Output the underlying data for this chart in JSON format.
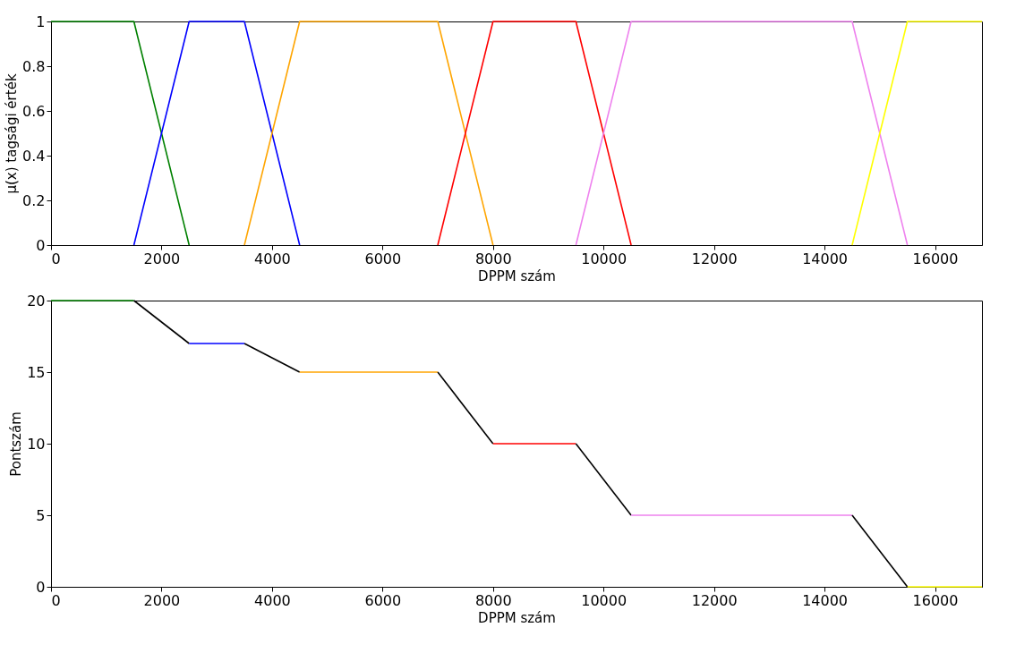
{
  "chart_data": [
    {
      "type": "line",
      "xlabel": "DPPM szám",
      "ylabel": "μ(x) tagsági érték",
      "xlim": [
        0,
        16850
      ],
      "ylim": [
        0,
        1
      ],
      "xticks": [
        0,
        2000,
        4000,
        6000,
        8000,
        10000,
        12000,
        14000,
        16000
      ],
      "yticks": [
        0,
        0.2,
        0.4,
        0.6,
        0.8,
        1
      ],
      "grid": false,
      "series": [
        {
          "color": "#008000",
          "x": [
            0,
            1500,
            2500
          ],
          "values": [
            1,
            1,
            0
          ]
        },
        {
          "color": "#0000ff",
          "x": [
            1500,
            2500,
            3500,
            4500
          ],
          "values": [
            0,
            1,
            1,
            0
          ]
        },
        {
          "color": "#ffa500",
          "x": [
            3500,
            4500,
            7000,
            8000
          ],
          "values": [
            0,
            1,
            1,
            0
          ]
        },
        {
          "color": "#ff0000",
          "x": [
            7000,
            8000,
            9500,
            10500
          ],
          "values": [
            0,
            1,
            1,
            0
          ]
        },
        {
          "color": "#ee82ee",
          "x": [
            9500,
            10500,
            14500,
            15500
          ],
          "values": [
            0,
            1,
            1,
            0
          ]
        },
        {
          "color": "#ffff00",
          "x": [
            14500,
            15500,
            16850
          ],
          "values": [
            0,
            1,
            1
          ]
        }
      ]
    },
    {
      "type": "line",
      "xlabel": "DPPM szám",
      "ylabel": "Pontszám",
      "xlim": [
        0,
        16850
      ],
      "ylim": [
        0,
        20
      ],
      "xticks": [
        0,
        2000,
        4000,
        6000,
        8000,
        10000,
        12000,
        14000,
        16000
      ],
      "yticks": [
        0,
        5,
        10,
        15,
        20
      ],
      "grid": false,
      "series": [
        {
          "color": "#008000",
          "x": [
            0,
            1500
          ],
          "values": [
            20,
            20
          ]
        },
        {
          "color": "#000000",
          "x": [
            1500,
            2500
          ],
          "values": [
            20,
            17
          ]
        },
        {
          "color": "#0000ff",
          "x": [
            2500,
            3500
          ],
          "values": [
            17,
            17
          ]
        },
        {
          "color": "#000000",
          "x": [
            3500,
            4500
          ],
          "values": [
            17,
            15
          ]
        },
        {
          "color": "#ffa500",
          "x": [
            4500,
            7000
          ],
          "values": [
            15,
            15
          ]
        },
        {
          "color": "#000000",
          "x": [
            7000,
            8000
          ],
          "values": [
            15,
            10
          ]
        },
        {
          "color": "#ff0000",
          "x": [
            8000,
            9500
          ],
          "values": [
            10,
            10
          ]
        },
        {
          "color": "#000000",
          "x": [
            9500,
            10500
          ],
          "values": [
            10,
            5
          ]
        },
        {
          "color": "#ee82ee",
          "x": [
            10500,
            14500
          ],
          "values": [
            5,
            5
          ]
        },
        {
          "color": "#000000",
          "x": [
            14500,
            15500
          ],
          "values": [
            5,
            0
          ]
        },
        {
          "color": "#ffff00",
          "x": [
            15500,
            16850
          ],
          "values": [
            0,
            0
          ]
        }
      ]
    }
  ]
}
